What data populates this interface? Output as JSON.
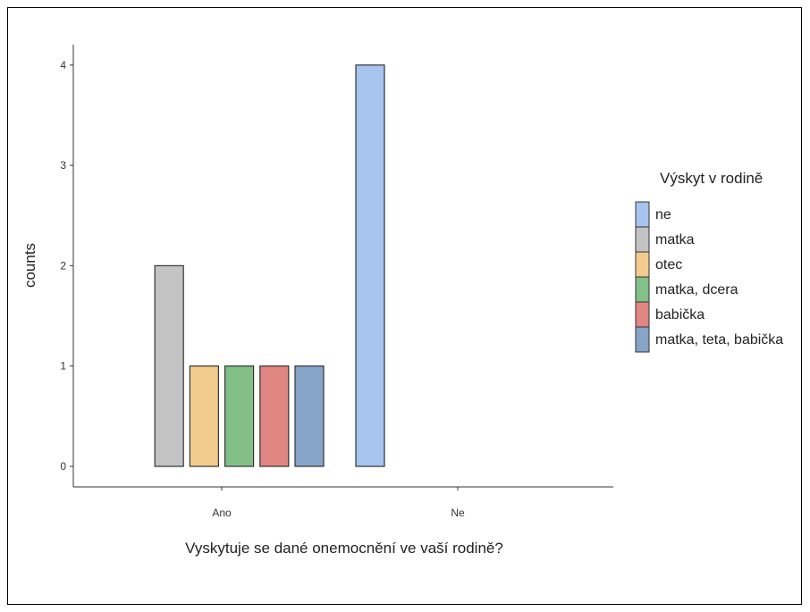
{
  "chart_data": {
    "type": "bar",
    "categories": [
      "Ano",
      "Ne"
    ],
    "xlabel": "Vyskytuje se dané onemocnění ve vaší rodině?",
    "ylabel": "counts",
    "yticks": [
      0,
      1,
      2,
      3,
      4
    ],
    "ylim": [
      0,
      4
    ],
    "grid": false,
    "legend": {
      "title": "Výskyt v rodině",
      "position": "right"
    },
    "series": [
      {
        "name": "ne",
        "color": "#a6c4ee",
        "values": [
          0,
          4
        ]
      },
      {
        "name": "matka",
        "color": "#c3c3c3",
        "values": [
          2,
          0
        ]
      },
      {
        "name": "otec",
        "color": "#f1cc8e",
        "values": [
          1,
          0
        ]
      },
      {
        "name": "matka, dcera",
        "color": "#82c087",
        "values": [
          1,
          0
        ]
      },
      {
        "name": "babička",
        "color": "#e08683",
        "values": [
          1,
          0
        ]
      },
      {
        "name": "matka, teta, babička",
        "color": "#87a4c9",
        "values": [
          1,
          0
        ]
      }
    ]
  }
}
